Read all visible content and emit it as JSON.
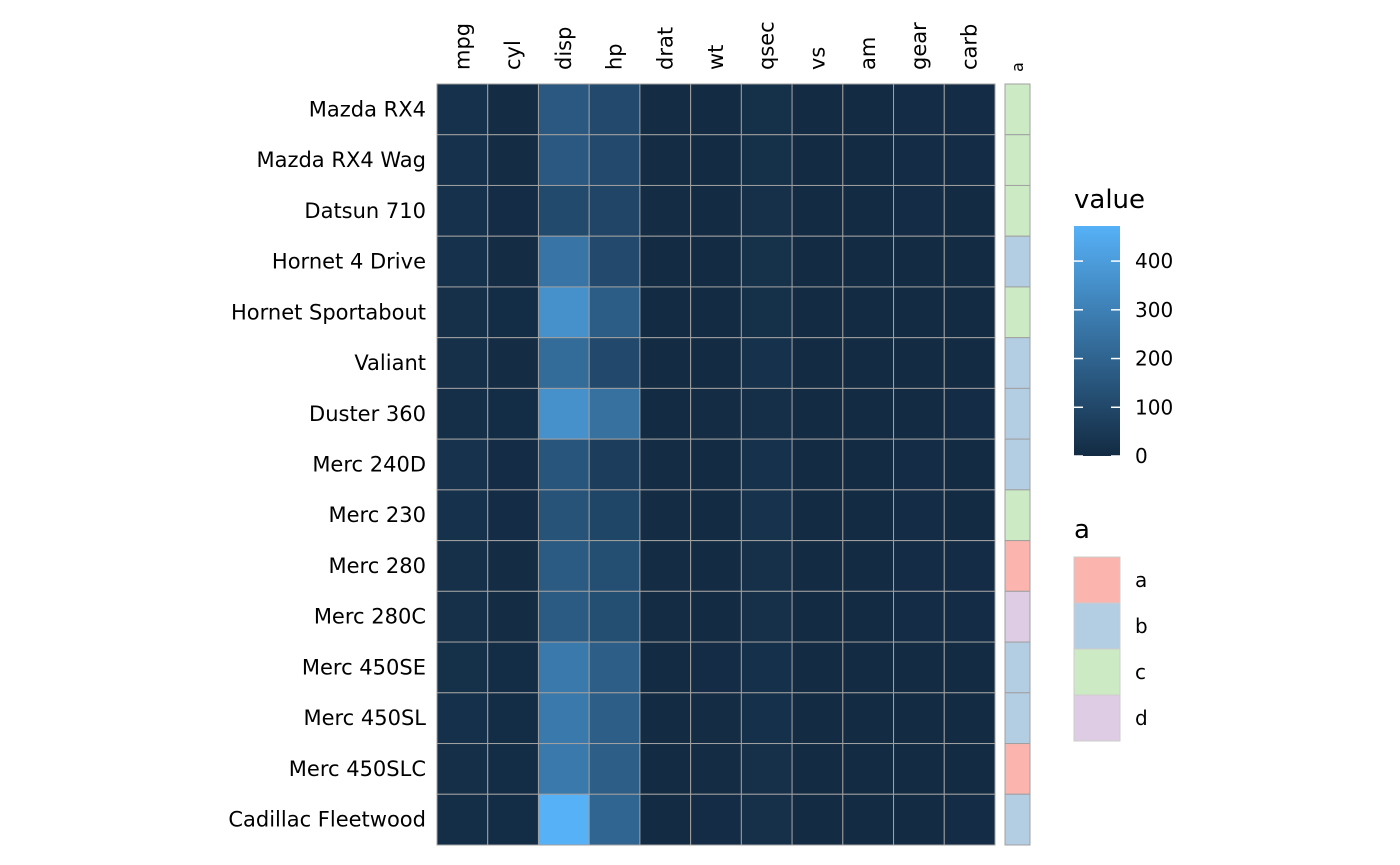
{
  "chart_data": {
    "type": "heatmap",
    "columns": [
      "mpg",
      "cyl",
      "disp",
      "hp",
      "drat",
      "wt",
      "qsec",
      "vs",
      "am",
      "gear",
      "carb"
    ],
    "rows": [
      "Mazda RX4",
      "Mazda RX4 Wag",
      "Datsun 710",
      "Hornet 4 Drive",
      "Hornet Sportabout",
      "Valiant",
      "Duster 360",
      "Merc 240D",
      "Merc 230",
      "Merc 280",
      "Merc 280C",
      "Merc 450SE",
      "Merc 450SL",
      "Merc 450SLC",
      "Cadillac Fleetwood"
    ],
    "values": [
      [
        21.0,
        6,
        160.0,
        110,
        3.9,
        2.62,
        16.46,
        0,
        1,
        4,
        4
      ],
      [
        21.0,
        6,
        160.0,
        110,
        3.9,
        2.875,
        17.02,
        0,
        1,
        4,
        4
      ],
      [
        22.8,
        4,
        108.0,
        93,
        3.85,
        2.32,
        18.61,
        1,
        1,
        4,
        1
      ],
      [
        21.4,
        6,
        258.0,
        110,
        3.08,
        3.215,
        19.44,
        1,
        0,
        3,
        1
      ],
      [
        18.7,
        8,
        360.0,
        175,
        3.15,
        3.44,
        17.02,
        0,
        0,
        3,
        2
      ],
      [
        18.1,
        6,
        225.0,
        105,
        2.76,
        3.46,
        20.22,
        1,
        0,
        3,
        1
      ],
      [
        14.3,
        8,
        360.0,
        245,
        3.21,
        3.57,
        15.84,
        0,
        0,
        3,
        4
      ],
      [
        24.4,
        4,
        146.7,
        62,
        3.69,
        3.19,
        20.0,
        1,
        0,
        4,
        2
      ],
      [
        22.8,
        4,
        140.8,
        95,
        3.92,
        3.15,
        22.9,
        1,
        0,
        4,
        2
      ],
      [
        19.2,
        6,
        167.6,
        123,
        3.92,
        3.44,
        18.3,
        1,
        0,
        4,
        4
      ],
      [
        17.8,
        6,
        167.6,
        123,
        3.92,
        3.44,
        18.9,
        1,
        0,
        4,
        4
      ],
      [
        16.4,
        8,
        275.8,
        180,
        3.07,
        4.07,
        17.4,
        0,
        0,
        3,
        3
      ],
      [
        17.3,
        8,
        275.8,
        180,
        3.07,
        3.73,
        17.6,
        0,
        0,
        3,
        3
      ],
      [
        15.2,
        8,
        275.8,
        180,
        3.07,
        3.78,
        18.0,
        0,
        0,
        3,
        3
      ],
      [
        10.4,
        8,
        472.0,
        205,
        2.93,
        5.25,
        17.98,
        0,
        0,
        3,
        4
      ]
    ],
    "annotation": {
      "name": "a",
      "values": [
        "c",
        "c",
        "c",
        "b",
        "c",
        "b",
        "b",
        "b",
        "c",
        "a",
        "d",
        "b",
        "b",
        "a",
        "b"
      ],
      "colors": {
        "a": "#FBB4AE",
        "b": "#B3CDE3",
        "c": "#CCEBC5",
        "d": "#DECBE4"
      }
    },
    "color_scale": {
      "name": "value",
      "min": 0,
      "max": 472,
      "low_color": "#132B43",
      "high_color": "#56B1F7",
      "breaks": [
        0,
        100,
        200,
        300,
        400
      ]
    },
    "grid_color": "#A0A0A0",
    "legend_placement": "right"
  }
}
